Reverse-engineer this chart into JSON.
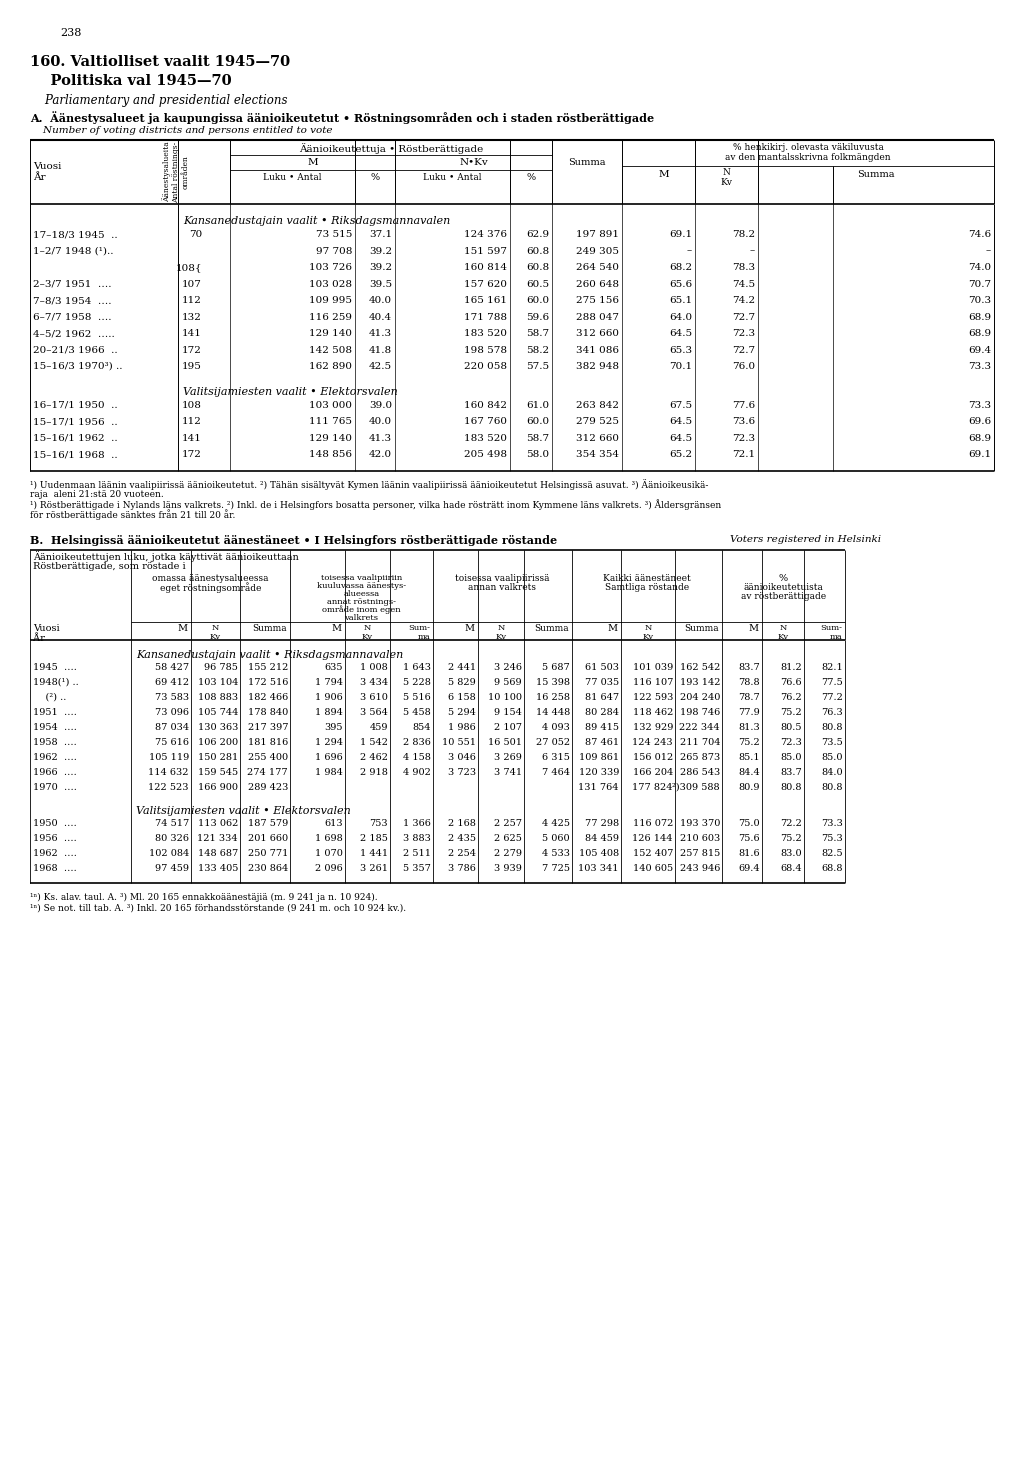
{
  "page_number": "238",
  "title_fi": "160. Valtiolliset vaalit 1945—70",
  "title_sv": "    Politiska val 1945—70",
  "title_en": "    Parliamentary and presidential elections",
  "subtitle_A_fi": "A.  Äänestysalueet ja kaupungissa äänioikeutetut • Röstningsområden och i staden röstberättigade",
  "subtitle_A_en": "    Number of voting districts and persons entitled to vote",
  "tableA_section1": "Kansanedustajain vaalit • Riksdagsmannavalen",
  "tableA_data_riksdag": [
    [
      "17–18/3 1945  ..",
      "70",
      "73 515",
      "37.1",
      "124 376",
      "62.9",
      "197 891",
      "69.1",
      "78.2",
      "74.6"
    ],
    [
      "1–2/7 1948 (¹)..",
      "",
      "97 708",
      "39.2",
      "151 597",
      "60.8",
      "249 305",
      "–",
      "–",
      "–"
    ],
    [
      "",
      "108{",
      "103 726",
      "39.2",
      "160 814",
      "60.8",
      "264 540",
      "68.2",
      "78.3",
      "74.0"
    ],
    [
      "2–3/7 1951  ….",
      "107",
      "103 028",
      "39.5",
      "157 620",
      "60.5",
      "260 648",
      "65.6",
      "74.5",
      "70.7"
    ],
    [
      "7–8/3 1954  ….",
      "112",
      "109 995",
      "40.0",
      "165 161",
      "60.0",
      "275 156",
      "65.1",
      "74.2",
      "70.3"
    ],
    [
      "6–7/7 1958  ….",
      "132",
      "116 259",
      "40.4",
      "171 788",
      "59.6",
      "288 047",
      "64.0",
      "72.7",
      "68.9"
    ],
    [
      "4–5/2 1962  …..",
      "141",
      "129 140",
      "41.3",
      "183 520",
      "58.7",
      "312 660",
      "64.5",
      "72.3",
      "68.9"
    ],
    [
      "20–21/3 1966  ..",
      "172",
      "142 508",
      "41.8",
      "198 578",
      "58.2",
      "341 086",
      "65.3",
      "72.7",
      "69.4"
    ],
    [
      "15–16/3 1970³) ..",
      "195",
      "162 890",
      "42.5",
      "220 058",
      "57.5",
      "382 948",
      "70.1",
      "76.0",
      "73.3"
    ]
  ],
  "tableA_section2": "Valitsijamiesten vaalit • Elektorsvalen",
  "tableA_data_elektors": [
    [
      "16–17/1 1950  ..",
      "108",
      "103 000",
      "39.0",
      "160 842",
      "61.0",
      "263 842",
      "67.5",
      "77.6",
      "73.3"
    ],
    [
      "15–17/1 1956  ..",
      "112",
      "111 765",
      "40.0",
      "167 760",
      "60.0",
      "279 525",
      "64.5",
      "73.6",
      "69.6"
    ],
    [
      "15–16/1 1962  ..",
      "141",
      "129 140",
      "41.3",
      "183 520",
      "58.7",
      "312 660",
      "64.5",
      "72.3",
      "68.9"
    ],
    [
      "15–16/1 1968  ..",
      "172",
      "148 856",
      "42.0",
      "205 498",
      "58.0",
      "354 354",
      "65.2",
      "72.1",
      "69.1"
    ]
  ],
  "footnote1": "¹) Uudenmaan läänin vaalipiirissä äänioikeutetut. ²) Tähän sisältyvät Kymen läänin vaalipiirissä äänioikeutetut Helsingissä asuvat. ³) Äänioikeusikä-",
  "footnote2": "raja  aleni 21:stä 20 vuoteen.",
  "footnote3": "¹) Röstberättigade i Nylands läns valkrets. ²) Inkl. de i Helsingfors bosatta personer, vilka hade rösträtt inom Kymmene läns valkrets. ³) Åldersgränsen",
  "footnote4": "för röstberättigade sänktes från 21 till 20 år.",
  "subtitle_B_fi": "B.  Helsingissä äänioikeutetut äänestäneet • I Helsingfors röstberättigade röstande",
  "subtitle_B_en": "Voters registered in Helsinki",
  "tableB_intro1": "Äänioikeutettujen luku, jotka käyttivät äänioikeuttaan",
  "tableB_intro2": "Röstberättigade, som röstade i",
  "tableB_col_omassa1": "omassa äänestysalueessa",
  "tableB_col_omassa2": "eget röstningsområde",
  "tableB_col_toisessa1a": "toisessa vaalipiiriin",
  "tableB_col_toisessa1b": "kuuluvassa äänestys-",
  "tableB_col_toisessa1c": "alueessa",
  "tableB_col_toisessa1d": "annat röstnings-",
  "tableB_col_toisessa1e": "område inom egen",
  "tableB_col_toisessa1f": "valkrets",
  "tableB_col_toisessa2a": "toisessa vaalipiirissä",
  "tableB_col_toisessa2b": "annan valkrets",
  "tableB_col_kaikki1": "Kaikki äänestäneet",
  "tableB_col_kaikki2": "Samtliga röstande",
  "tableB_col_pct1": "%",
  "tableB_col_pct2": "äänioikeutetuista",
  "tableB_col_pct3": "av röstberättigade",
  "tableB_section1": "Kansanedustajain vaalit • Riksdagsmannavalen",
  "tableB_data_riksdag": [
    [
      "1945  ….",
      "58 427",
      "96 785",
      "155 212",
      "635",
      "1 008",
      "1 643",
      "2 441",
      "3 246",
      "5 687",
      "61 503",
      "101 039",
      "162 542",
      "83.7",
      "81.2",
      "82.1"
    ],
    [
      "1948(¹) ..",
      "69 412",
      "103 104",
      "172 516",
      "1 794",
      "3 434",
      "5 228",
      "5 829",
      "9 569",
      "15 398",
      "77 035",
      "116 107",
      "193 142",
      "78.8",
      "76.6",
      "77.5"
    ],
    [
      "    (²) ..",
      "73 583",
      "108 883",
      "182 466",
      "1 906",
      "3 610",
      "5 516",
      "6 158",
      "10 100",
      "16 258",
      "81 647",
      "122 593",
      "204 240",
      "78.7",
      "76.2",
      "77.2"
    ],
    [
      "1951  ….",
      "73 096",
      "105 744",
      "178 840",
      "1 894",
      "3 564",
      "5 458",
      "5 294",
      "9 154",
      "14 448",
      "80 284",
      "118 462",
      "198 746",
      "77.9",
      "75.2",
      "76.3"
    ],
    [
      "1954  ….",
      "87 034",
      "130 363",
      "217 397",
      "395",
      "459",
      "854",
      "1 986",
      "2 107",
      "4 093",
      "89 415",
      "132 929",
      "222 344",
      "81.3",
      "80.5",
      "80.8"
    ],
    [
      "1958  ….",
      "75 616",
      "106 200",
      "181 816",
      "1 294",
      "1 542",
      "2 836",
      "10 551",
      "16 501",
      "27 052",
      "87 461",
      "124 243",
      "211 704",
      "75.2",
      "72.3",
      "73.5"
    ],
    [
      "1962  ….",
      "105 119",
      "150 281",
      "255 400",
      "1 696",
      "2 462",
      "4 158",
      "3 046",
      "3 269",
      "6 315",
      "109 861",
      "156 012",
      "265 873",
      "85.1",
      "85.0",
      "85.0"
    ],
    [
      "1966  ….",
      "114 632",
      "159 545",
      "274 177",
      "1 984",
      "2 918",
      "4 902",
      "3 723",
      "3 741",
      "7 464",
      "120 339",
      "166 204",
      "286 543",
      "84.4",
      "83.7",
      "84.0"
    ],
    [
      "1970  ….",
      "122 523",
      "166 900",
      "289 423",
      "",
      "",
      "",
      "",
      "",
      "",
      "131 764",
      "177 824",
      "²)309 588",
      "80.9",
      "80.8",
      "80.8"
    ]
  ],
  "tableB_section2": "Valitsijamiesten vaalit • Elektorsvalen",
  "tableB_data_elektors": [
    [
      "1950  ….",
      "74 517",
      "113 062",
      "187 579",
      "613",
      "753",
      "1 366",
      "2 168",
      "2 257",
      "4 425",
      "77 298",
      "116 072",
      "193 370",
      "75.0",
      "72.2",
      "73.3"
    ],
    [
      "1956  ….",
      "80 326",
      "121 334",
      "201 660",
      "1 698",
      "2 185",
      "3 883",
      "2 435",
      "2 625",
      "5 060",
      "84 459",
      "126 144",
      "210 603",
      "75.6",
      "75.2",
      "75.3"
    ],
    [
      "1962  ….",
      "102 084",
      "148 687",
      "250 771",
      "1 070",
      "1 441",
      "2 511",
      "2 254",
      "2 279",
      "4 533",
      "105 408",
      "152 407",
      "257 815",
      "81.6",
      "83.0",
      "82.5"
    ],
    [
      "1968  ….",
      "97 459",
      "133 405",
      "230 864",
      "2 096",
      "3 261",
      "5 357",
      "3 786",
      "3 939",
      "7 725",
      "103 341",
      "140 605",
      "243 946",
      "69.4",
      "68.4",
      "68.8"
    ]
  ],
  "footnoteB1": "¹ⁿ) Ks. alav. taul. A. ³) Ml. 20 165 ennakkoäänestäjiä (m. 9 241 ja n. 10 924).",
  "footnoteB2": "¹ⁿ) Se not. till tab. A. ³) Inkl. 20 165 förhandsstörstande (9 241 m. och 10 924 kv.)."
}
